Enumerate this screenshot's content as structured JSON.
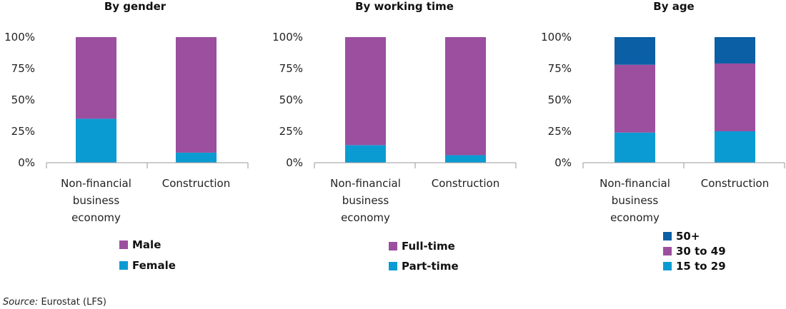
{
  "colors": {
    "male": "#9b4f9e",
    "female": "#0b9bd3",
    "full_time": "#9b4f9e",
    "part_time": "#0b9bd3",
    "age_50_plus": "#0a5fa5",
    "age_30_to_49": "#9b4f9e",
    "age_15_to_29": "#0b9bd3",
    "axis": "#999999"
  },
  "source": {
    "label": "Source:",
    "text": "Eurostat (LFS)"
  },
  "chart_data": [
    {
      "type": "bar",
      "stacked": true,
      "title": "By gender",
      "categories": [
        "Non-financial business economy",
        "Construction"
      ],
      "category_lines": [
        [
          "Non-financial",
          "business",
          "economy"
        ],
        [
          "Construction"
        ]
      ],
      "y_ticks": [
        "0%",
        "25%",
        "50%",
        "75%",
        "100%"
      ],
      "ylim": [
        0,
        100
      ],
      "series": [
        {
          "name": "Female",
          "color_key": "female",
          "values": [
            35,
            8
          ]
        },
        {
          "name": "Male",
          "color_key": "male",
          "values": [
            65,
            92
          ]
        }
      ],
      "legend_order": [
        "Male",
        "Female"
      ]
    },
    {
      "type": "bar",
      "stacked": true,
      "title": "By working time",
      "categories": [
        "Non-financial business economy",
        "Construction"
      ],
      "category_lines": [
        [
          "Non-financial",
          "business",
          "economy"
        ],
        [
          "Construction"
        ]
      ],
      "y_ticks": [
        "0%",
        "25%",
        "50%",
        "75%",
        "100%"
      ],
      "ylim": [
        0,
        100
      ],
      "series": [
        {
          "name": "Part-time",
          "color_key": "part_time",
          "values": [
            14,
            6
          ]
        },
        {
          "name": "Full-time",
          "color_key": "full_time",
          "values": [
            86,
            94
          ]
        }
      ],
      "legend_order": [
        "Full-time",
        "Part-time"
      ]
    },
    {
      "type": "bar",
      "stacked": true,
      "title": "By age",
      "categories": [
        "Non-financial business economy",
        "Construction"
      ],
      "category_lines": [
        [
          "Non-financial",
          "business",
          "economy"
        ],
        [
          "Construction"
        ]
      ],
      "y_ticks": [
        "0%",
        "25%",
        "50%",
        "75%",
        "100%"
      ],
      "ylim": [
        0,
        100
      ],
      "series": [
        {
          "name": "15 to 29",
          "color_key": "age_15_to_29",
          "values": [
            24,
            25
          ]
        },
        {
          "name": "30 to 49",
          "color_key": "age_30_to_49",
          "values": [
            54,
            54
          ]
        },
        {
          "name": "50+",
          "color_key": "age_50_plus",
          "values": [
            22,
            21
          ]
        }
      ],
      "legend_order": [
        "50+",
        "30 to 49",
        "15 to 29"
      ]
    }
  ]
}
